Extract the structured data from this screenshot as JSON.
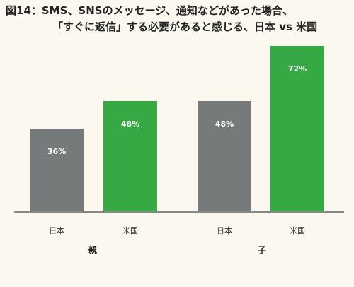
{
  "title": {
    "line1": "図14：SMS、SNSのメッセージ、通知などがあった場合、",
    "line2": "「すぐに返信」する必要があると感じる、日本 vs 米国"
  },
  "colors": {
    "japan": "#777a7a",
    "us": "#36a844",
    "background": "#fbf9ef",
    "axis": "#444444"
  },
  "chart_data": {
    "type": "bar",
    "groups": [
      {
        "name": "親",
        "bars": [
          {
            "label": "日本",
            "value": 36
          },
          {
            "label": "米国",
            "value": 48
          }
        ]
      },
      {
        "name": "子",
        "bars": [
          {
            "label": "日本",
            "value": 48
          },
          {
            "label": "米国",
            "value": 72
          }
        ]
      }
    ],
    "unit": "%",
    "ylim": [
      0,
      80
    ],
    "grid": false,
    "legend": "none"
  }
}
